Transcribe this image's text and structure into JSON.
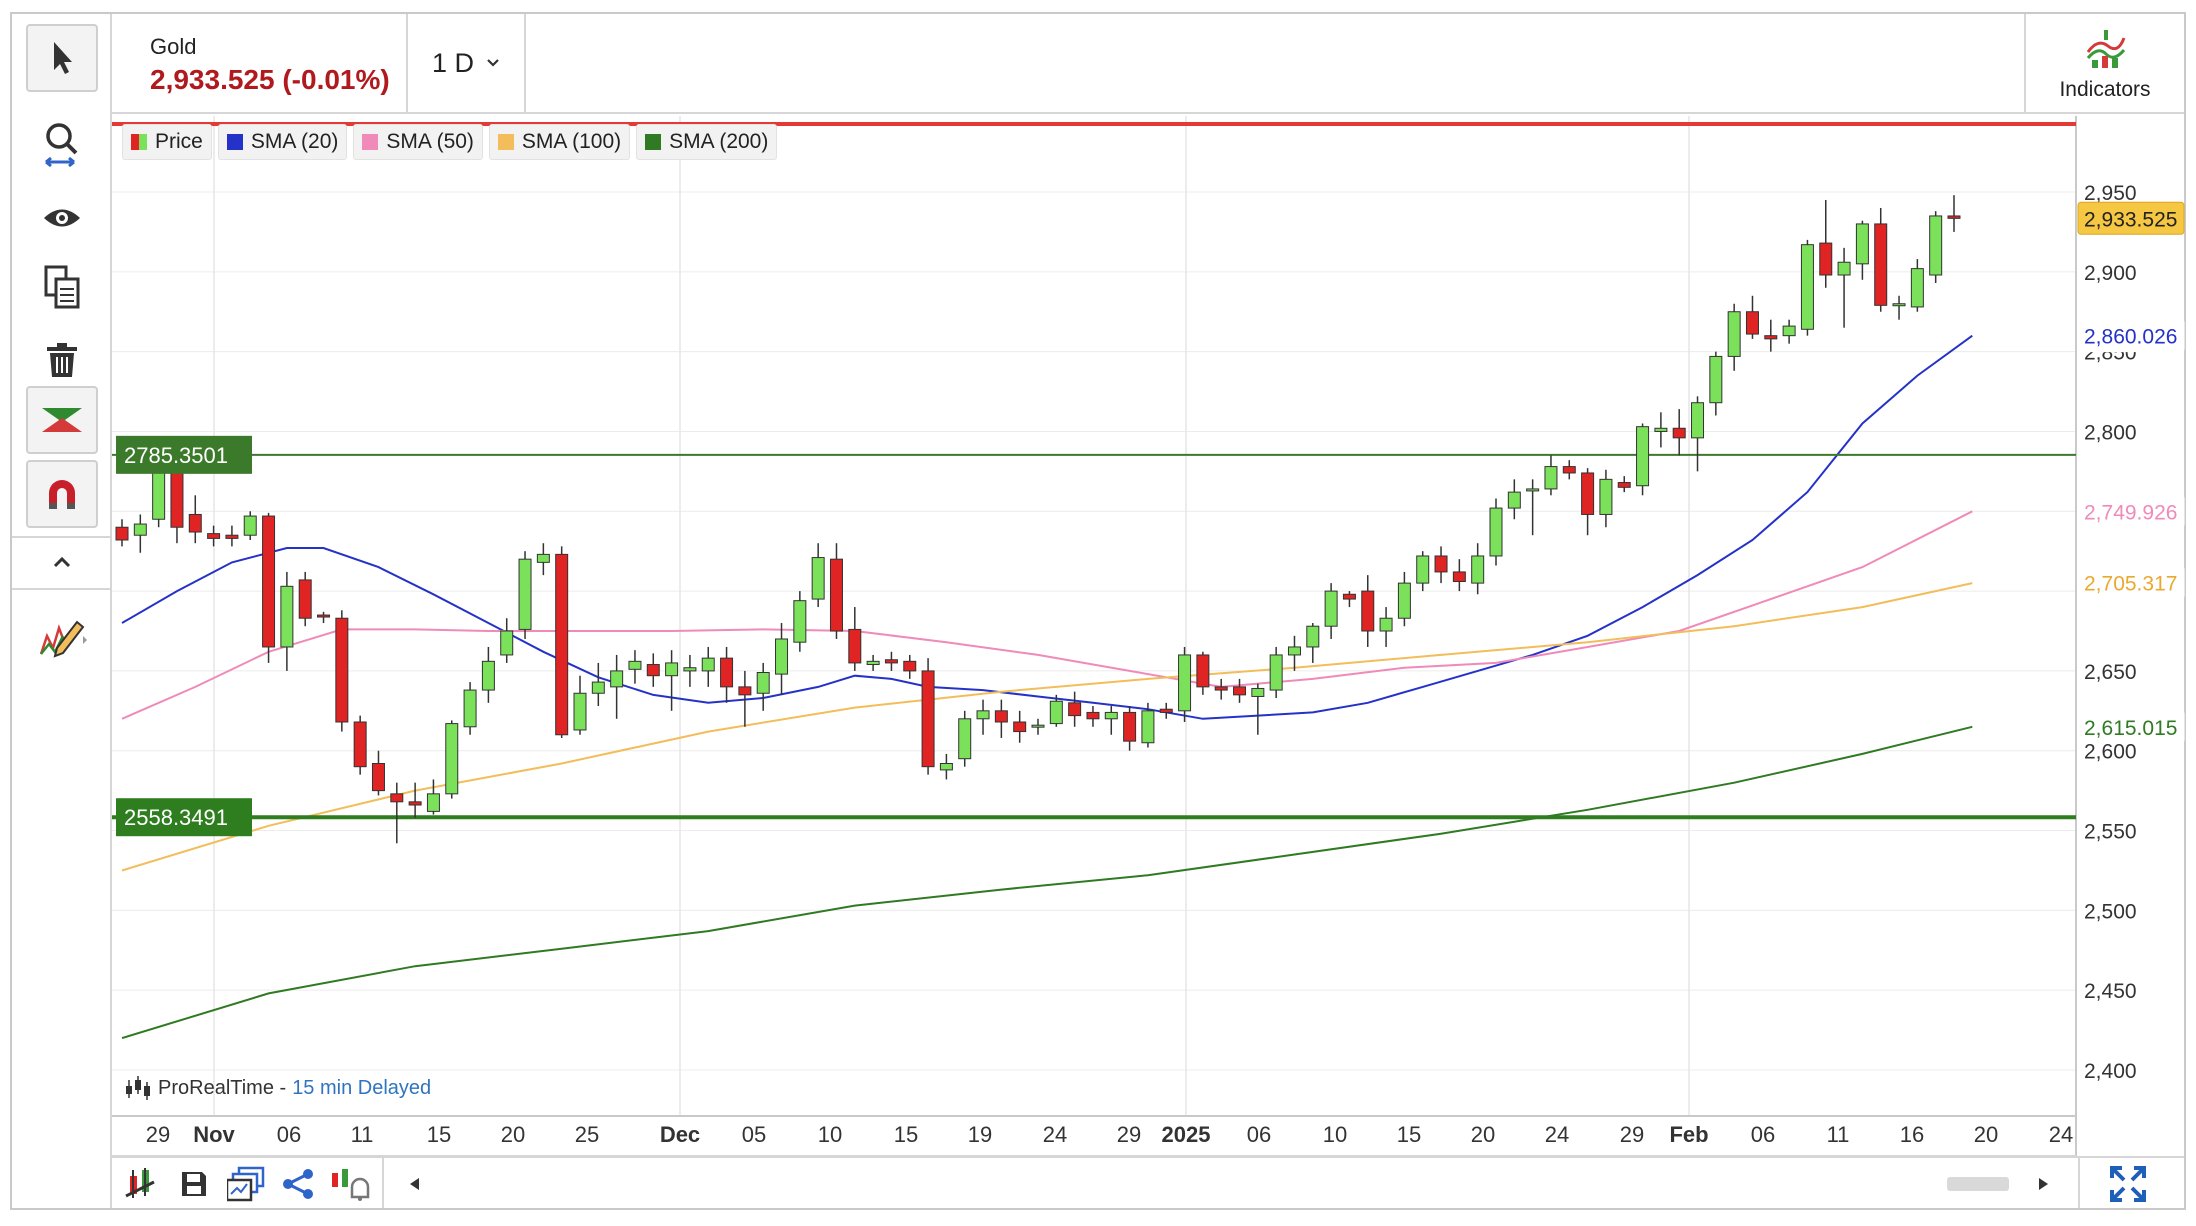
{
  "header": {
    "instrument": "Gold",
    "price_change": "2,933.525 (-0.01%)",
    "period": "1 D",
    "indicators_label": "Indicators"
  },
  "legend": [
    {
      "label": "Price",
      "color": "#33aa33"
    },
    {
      "label": "SMA (20)",
      "color": "#2432c8"
    },
    {
      "label": "SMA (50)",
      "color": "#ef8ab9"
    },
    {
      "label": "SMA (100)",
      "color": "#f2bd5a"
    },
    {
      "label": "SMA (200)",
      "color": "#2f7a22"
    }
  ],
  "watermark": {
    "brand": "ProRealTime -",
    "status": "15 min Delayed"
  },
  "chart_data": {
    "type": "candlestick",
    "x_tick_labels": [
      "29",
      "Nov",
      "06",
      "11",
      "15",
      "20",
      "25",
      "Dec",
      "05",
      "10",
      "15",
      "19",
      "24",
      "29",
      "2025",
      "06",
      "10",
      "15",
      "20",
      "24",
      "29",
      "Feb",
      "06",
      "11",
      "16",
      "20",
      "24"
    ],
    "y_tick_labels": [
      "2,950",
      "2,900",
      "2,850",
      "2,800",
      "2,650",
      "2,600",
      "2,550",
      "2,500",
      "2,450",
      "2,400"
    ],
    "ylim": [
      2376,
      2983
    ],
    "grid": true,
    "colors": {
      "up": "#7be05a",
      "down": "#e02424",
      "wick": "#333333"
    },
    "horizontal_lines": [
      {
        "label": "2785.3501",
        "value": 2785.3501,
        "color": "#3c7a2b"
      },
      {
        "label": "2558.3491",
        "value": 2558.3491,
        "color": "#2e7d1f"
      },
      {
        "label": "3000",
        "value": 3000,
        "color": "#e53935"
      }
    ],
    "price_labels": [
      {
        "label": "2,933.525",
        "value": 2933.525,
        "bg": "#f6c743",
        "color": "#222222"
      },
      {
        "label": "2,860.026",
        "value": 2860.026,
        "bg": "#ffffff",
        "color": "#2432c8"
      },
      {
        "label": "2,749.926",
        "value": 2749.926,
        "bg": "#ffffff",
        "color": "#ef8ab9"
      },
      {
        "label": "2,705.317",
        "value": 2705.317,
        "bg": "#ffffff",
        "color": "#e9a930"
      },
      {
        "label": "2,615.015",
        "value": 2615.015,
        "bg": "#ffffff",
        "color": "#2f7a22"
      }
    ],
    "candles": [
      [
        0,
        2740,
        2745,
        2728,
        2732
      ],
      [
        1,
        2735,
        2748,
        2724,
        2742
      ],
      [
        2,
        2745,
        2790,
        2740,
        2779
      ],
      [
        3,
        2779,
        2784,
        2730,
        2740
      ],
      [
        4,
        2748,
        2760,
        2730,
        2737
      ],
      [
        5,
        2736,
        2741,
        2728,
        2733
      ],
      [
        6,
        2735,
        2741,
        2728,
        2733
      ],
      [
        7,
        2735,
        2750,
        2732,
        2747
      ],
      [
        8,
        2747,
        2749,
        2655,
        2665
      ],
      [
        9,
        2665,
        2712,
        2650,
        2703
      ],
      [
        10,
        2707,
        2712,
        2678,
        2683
      ],
      [
        11,
        2685,
        2687,
        2680,
        2684
      ],
      [
        12,
        2683,
        2688,
        2612,
        2618
      ],
      [
        13,
        2618,
        2622,
        2585,
        2590
      ],
      [
        14,
        2592,
        2600,
        2572,
        2575
      ],
      [
        15,
        2573,
        2580,
        2542,
        2568
      ],
      [
        16,
        2568,
        2580,
        2558,
        2566
      ],
      [
        17,
        2562,
        2582,
        2560,
        2573
      ],
      [
        18,
        2573,
        2619,
        2570,
        2617
      ],
      [
        19,
        2615,
        2643,
        2610,
        2638
      ],
      [
        20,
        2638,
        2665,
        2630,
        2656
      ],
      [
        21,
        2660,
        2683,
        2655,
        2675
      ],
      [
        22,
        2676,
        2725,
        2670,
        2720
      ],
      [
        23,
        2718,
        2730,
        2710,
        2723
      ],
      [
        24,
        2723,
        2728,
        2608,
        2610
      ],
      [
        25,
        2613,
        2647,
        2610,
        2636
      ],
      [
        26,
        2636,
        2655,
        2628,
        2643
      ],
      [
        27,
        2640,
        2660,
        2620,
        2650
      ],
      [
        28,
        2651,
        2663,
        2642,
        2656
      ],
      [
        29,
        2654,
        2661,
        2640,
        2647
      ],
      [
        30,
        2647,
        2663,
        2625,
        2655
      ],
      [
        31,
        2650,
        2660,
        2640,
        2652
      ],
      [
        32,
        2650,
        2665,
        2640,
        2658
      ],
      [
        33,
        2658,
        2665,
        2630,
        2640
      ],
      [
        34,
        2640,
        2650,
        2615,
        2635
      ],
      [
        35,
        2636,
        2655,
        2625,
        2649
      ],
      [
        36,
        2648,
        2680,
        2635,
        2670
      ],
      [
        37,
        2668,
        2700,
        2662,
        2694
      ],
      [
        38,
        2695,
        2730,
        2690,
        2721
      ],
      [
        39,
        2720,
        2730,
        2670,
        2675
      ],
      [
        40,
        2676,
        2690,
        2650,
        2655
      ],
      [
        41,
        2654,
        2660,
        2650,
        2656
      ],
      [
        42,
        2657,
        2662,
        2650,
        2655
      ],
      [
        43,
        2656,
        2660,
        2645,
        2650
      ],
      [
        44,
        2650,
        2658,
        2585,
        2590
      ],
      [
        45,
        2588,
        2598,
        2582,
        2592
      ],
      [
        46,
        2595,
        2625,
        2590,
        2620
      ],
      [
        47,
        2620,
        2632,
        2610,
        2625
      ],
      [
        48,
        2625,
        2632,
        2608,
        2618
      ],
      [
        49,
        2618,
        2625,
        2605,
        2612
      ],
      [
        50,
        2615,
        2620,
        2610,
        2616
      ],
      [
        51,
        2617,
        2635,
        2615,
        2631
      ],
      [
        52,
        2630,
        2637,
        2615,
        2622
      ],
      [
        53,
        2624,
        2628,
        2615,
        2620
      ],
      [
        54,
        2620,
        2628,
        2610,
        2624
      ],
      [
        55,
        2624,
        2628,
        2600,
        2606
      ],
      [
        56,
        2605,
        2630,
        2602,
        2625
      ],
      [
        57,
        2626,
        2630,
        2620,
        2624
      ],
      [
        58,
        2625,
        2665,
        2618,
        2660
      ],
      [
        59,
        2660,
        2662,
        2635,
        2640
      ],
      [
        60,
        2640,
        2645,
        2632,
        2638
      ],
      [
        61,
        2640,
        2645,
        2630,
        2635
      ],
      [
        62,
        2634,
        2642,
        2610,
        2639
      ],
      [
        63,
        2638,
        2665,
        2633,
        2660
      ],
      [
        64,
        2660,
        2672,
        2650,
        2665
      ],
      [
        65,
        2665,
        2680,
        2655,
        2678
      ],
      [
        66,
        2678,
        2705,
        2670,
        2700
      ],
      [
        67,
        2698,
        2700,
        2690,
        2695
      ],
      [
        68,
        2700,
        2710,
        2665,
        2675
      ],
      [
        69,
        2675,
        2690,
        2665,
        2683
      ],
      [
        70,
        2683,
        2712,
        2678,
        2705
      ],
      [
        71,
        2705,
        2725,
        2700,
        2722
      ],
      [
        72,
        2722,
        2728,
        2705,
        2712
      ],
      [
        73,
        2712,
        2720,
        2700,
        2706
      ],
      [
        74,
        2705,
        2730,
        2698,
        2722
      ],
      [
        75,
        2722,
        2758,
        2716,
        2752
      ],
      [
        76,
        2752,
        2770,
        2745,
        2762
      ],
      [
        77,
        2763,
        2770,
        2735,
        2764
      ],
      [
        78,
        2764,
        2785,
        2760,
        2778
      ],
      [
        79,
        2778,
        2782,
        2770,
        2774
      ],
      [
        80,
        2774,
        2777,
        2735,
        2748
      ],
      [
        81,
        2748,
        2776,
        2740,
        2770
      ],
      [
        82,
        2768,
        2772,
        2762,
        2765
      ],
      [
        83,
        2766,
        2805,
        2760,
        2803
      ],
      [
        84,
        2800,
        2812,
        2790,
        2802
      ],
      [
        85,
        2802,
        2814,
        2785,
        2796
      ],
      [
        86,
        2796,
        2822,
        2775,
        2818
      ],
      [
        87,
        2818,
        2850,
        2810,
        2847
      ],
      [
        88,
        2847,
        2880,
        2838,
        2875
      ],
      [
        89,
        2875,
        2885,
        2858,
        2861
      ],
      [
        90,
        2860,
        2870,
        2850,
        2858
      ],
      [
        91,
        2860,
        2870,
        2855,
        2866
      ],
      [
        92,
        2864,
        2920,
        2860,
        2917
      ],
      [
        93,
        2918,
        2945,
        2890,
        2898
      ],
      [
        94,
        2898,
        2915,
        2865,
        2906
      ],
      [
        95,
        2905,
        2932,
        2895,
        2930
      ],
      [
        96,
        2930,
        2940,
        2875,
        2879
      ],
      [
        97,
        2879,
        2885,
        2870,
        2880
      ],
      [
        98,
        2878,
        2908,
        2875,
        2902
      ],
      [
        99,
        2898,
        2938,
        2893,
        2935
      ],
      [
        100,
        2935,
        2948,
        2925,
        2933.5
      ]
    ],
    "series": [
      {
        "name": "SMA (20)",
        "color": "#2432c8",
        "values": [
          [
            0,
            2680
          ],
          [
            3,
            2700
          ],
          [
            6,
            2718
          ],
          [
            9,
            2727
          ],
          [
            11,
            2727
          ],
          [
            14,
            2715
          ],
          [
            17,
            2698
          ],
          [
            20,
            2680
          ],
          [
            23,
            2662
          ],
          [
            26,
            2646
          ],
          [
            29,
            2635
          ],
          [
            32,
            2630
          ],
          [
            35,
            2633
          ],
          [
            38,
            2640
          ],
          [
            40,
            2647
          ],
          [
            42,
            2645
          ],
          [
            44,
            2640
          ],
          [
            47,
            2638
          ],
          [
            50,
            2634
          ],
          [
            53,
            2630
          ],
          [
            56,
            2626
          ],
          [
            59,
            2620
          ],
          [
            62,
            2622
          ],
          [
            65,
            2624
          ],
          [
            68,
            2630
          ],
          [
            71,
            2640
          ],
          [
            74,
            2650
          ],
          [
            77,
            2660
          ],
          [
            80,
            2672
          ],
          [
            83,
            2690
          ],
          [
            86,
            2710
          ],
          [
            89,
            2732
          ],
          [
            92,
            2762
          ],
          [
            95,
            2805
          ],
          [
            98,
            2835
          ],
          [
            101,
            2860
          ]
        ]
      },
      {
        "name": "SMA (50)",
        "color": "#ef8ab9",
        "values": [
          [
            0,
            2620
          ],
          [
            4,
            2640
          ],
          [
            8,
            2662
          ],
          [
            12,
            2676
          ],
          [
            16,
            2676
          ],
          [
            20,
            2675
          ],
          [
            25,
            2675
          ],
          [
            30,
            2675
          ],
          [
            35,
            2676
          ],
          [
            40,
            2675
          ],
          [
            45,
            2668
          ],
          [
            50,
            2660
          ],
          [
            55,
            2650
          ],
          [
            60,
            2640
          ],
          [
            65,
            2645
          ],
          [
            70,
            2652
          ],
          [
            75,
            2655
          ],
          [
            80,
            2665
          ],
          [
            85,
            2675
          ],
          [
            90,
            2695
          ],
          [
            95,
            2715
          ],
          [
            101,
            2750
          ]
        ]
      },
      {
        "name": "SMA (100)",
        "color": "#f2bd5a",
        "values": [
          [
            0,
            2525
          ],
          [
            8,
            2553
          ],
          [
            16,
            2575
          ],
          [
            24,
            2592
          ],
          [
            32,
            2612
          ],
          [
            40,
            2627
          ],
          [
            48,
            2637
          ],
          [
            56,
            2645
          ],
          [
            64,
            2652
          ],
          [
            72,
            2660
          ],
          [
            80,
            2668
          ],
          [
            88,
            2678
          ],
          [
            95,
            2690
          ],
          [
            101,
            2705
          ]
        ]
      },
      {
        "name": "SMA (200)",
        "color": "#2f7a22",
        "values": [
          [
            0,
            2420
          ],
          [
            8,
            2448
          ],
          [
            16,
            2465
          ],
          [
            24,
            2476
          ],
          [
            32,
            2487
          ],
          [
            40,
            2503
          ],
          [
            48,
            2513
          ],
          [
            56,
            2522
          ],
          [
            64,
            2535
          ],
          [
            72,
            2548
          ],
          [
            80,
            2563
          ],
          [
            88,
            2580
          ],
          [
            95,
            2598
          ],
          [
            101,
            2615
          ]
        ]
      }
    ]
  }
}
